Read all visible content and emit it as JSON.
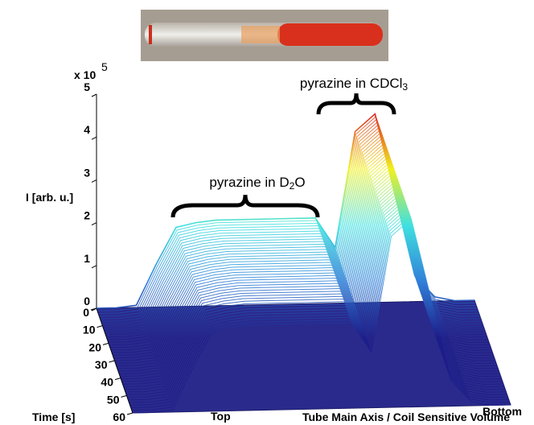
{
  "chart_data": {
    "type": "surface3d",
    "categories": [
      "Top",
      null,
      null,
      null,
      null,
      null,
      null,
      null,
      null,
      null,
      null,
      null,
      null,
      null,
      null,
      null,
      null,
      null,
      null,
      "Bottom"
    ],
    "values": [
      0,
      0,
      0.05,
      1.0,
      1.85,
      1.95,
      2,
      2,
      2,
      2,
      2,
      2,
      1.3,
      4.0,
      4.4,
      2.5,
      0.6,
      0.1,
      0,
      0
    ],
    "zlabel": "I [arb. u.]",
    "zlim": [
      0,
      5
    ],
    "zticks": [
      0,
      1,
      2,
      3,
      4,
      5
    ],
    "zscale": {
      "base": "x 10",
      "exponent": "5"
    },
    "tlabel": "Time [s]",
    "tlim": [
      0,
      60
    ],
    "tticks": [
      0,
      10,
      20,
      30,
      40,
      50,
      60
    ],
    "xlabel": "Tube Main Axis / Coil Sensitive Volume",
    "annotations": [
      {
        "parts": [
          "pyrazine in D",
          "2",
          "O"
        ]
      },
      {
        "parts": [
          "pyrazine in CDCl",
          "3"
        ]
      }
    ],
    "colormap": [
      "#1c1c8a",
      "#2f7fd8",
      "#3fe0e0",
      "#f0f020",
      "#e02020"
    ]
  }
}
